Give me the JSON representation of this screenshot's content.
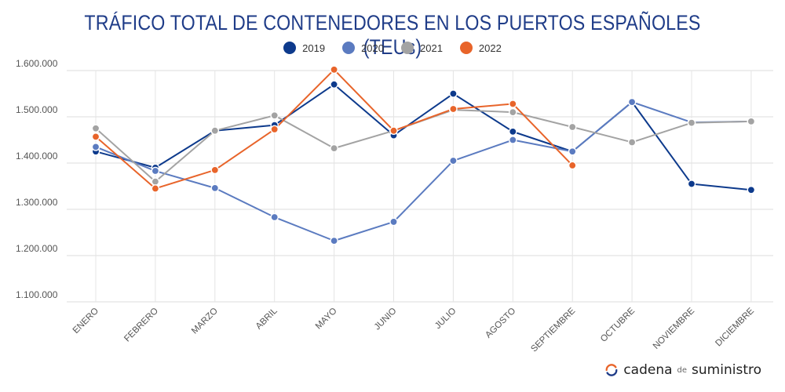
{
  "chart_data": {
    "type": "line",
    "title": "TRÁFICO TOTAL DE CONTENEDORES EN LOS PUERTOS ESPAÑOLES (TEUs)",
    "categories": [
      "ENERO",
      "FEBRERO",
      "MARZO",
      "ABRIL",
      "MAYO",
      "JUNIO",
      "JULIO",
      "AGOSTO",
      "SEPTIEMBRE",
      "OCTUBRE",
      "NOVIEMBRE",
      "DICIEMBRE"
    ],
    "ylim": [
      1100000,
      1600000
    ],
    "yticks": [
      1100000,
      1200000,
      1300000,
      1400000,
      1500000,
      1600000
    ],
    "ytick_labels": [
      "1.100.000",
      "1.200.000",
      "1.300.000",
      "1.400.000",
      "1.500.000",
      "1.600.000"
    ],
    "grid": true,
    "legend_position": "top-center",
    "series": [
      {
        "name": "2019",
        "color": "#0d3a8c",
        "values": [
          1425000,
          1390000,
          1470000,
          1482000,
          1570000,
          1460000,
          1550000,
          1468000,
          1425000,
          1532000,
          1355000,
          1342000
        ]
      },
      {
        "name": "2020",
        "color": "#5b7bc0",
        "values": [
          1435000,
          1383000,
          1346000,
          1283000,
          1232000,
          1273000,
          1405000,
          1450000,
          1425000,
          1532000,
          1488000,
          1490000
        ]
      },
      {
        "name": "2021",
        "color": "#a3a3a3",
        "values": [
          1475000,
          1360000,
          1470000,
          1503000,
          1432000,
          1470000,
          1515000,
          1510000,
          1478000,
          1445000,
          1487000,
          1490000
        ]
      },
      {
        "name": "2022",
        "color": "#e8642a",
        "values": [
          1457000,
          1345000,
          1385000,
          1473000,
          1602000,
          1470000,
          1517000,
          1528000,
          1395000,
          null,
          null,
          null
        ]
      }
    ]
  },
  "branding": {
    "part1": "cadena",
    "part2": "de",
    "part3": "suministro",
    "icon": "refresh-arc-icon",
    "icon_color": "#e8642a"
  }
}
